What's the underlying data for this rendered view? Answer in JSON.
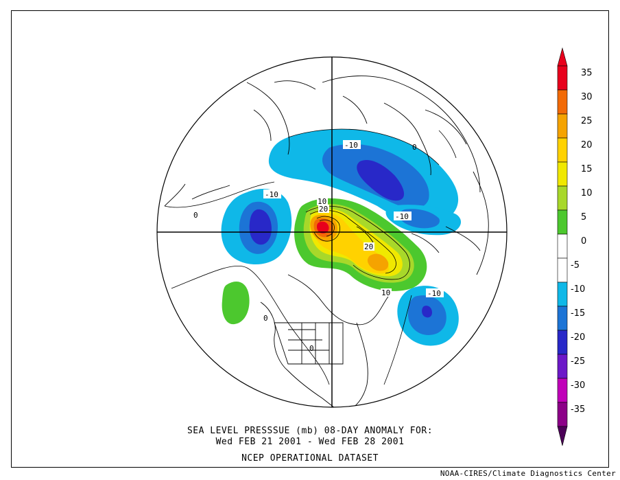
{
  "caption": {
    "line1": "SEA LEVEL PRESSSUE (mb)   08-DAY ANOMALY FOR:",
    "line2": "Wed FEB 21 2001 - Wed FEB 28 2001",
    "line3": "NCEP OPERATIONAL DATASET"
  },
  "credit": "NOAA-CIRES/Climate Diagnostics Center",
  "colorbar": {
    "levels": [
      {
        "label": "35",
        "color": "#e8001c"
      },
      {
        "label": "30",
        "color": "#f26a06"
      },
      {
        "label": "25",
        "color": "#f5a300"
      },
      {
        "label": "20",
        "color": "#ffd200"
      },
      {
        "label": "15",
        "color": "#f0e800"
      },
      {
        "label": "10",
        "color": "#a8d82a"
      },
      {
        "label": "5",
        "color": "#4cc82e"
      },
      {
        "label": "0",
        "color": "#ffffff"
      },
      {
        "label": "-5",
        "color": "#ffffff"
      },
      {
        "label": "-10",
        "color": "#0fb8e8"
      },
      {
        "label": "-15",
        "color": "#1c74d6"
      },
      {
        "label": "-20",
        "color": "#2828c8"
      },
      {
        "label": "-25",
        "color": "#6c18c8"
      },
      {
        "label": "-30",
        "color": "#c000b8"
      },
      {
        "label": "-35",
        "color": "#8c0088"
      }
    ],
    "bottom_color": "#4c0058",
    "top_color": "#e8001c"
  },
  "contour_labels": {
    "neg10_a": "-10",
    "neg10_b": "-10",
    "neg10_c": "-10",
    "neg10_d": "-10",
    "pos10_a": "10",
    "pos10_b": "10",
    "pos20_a": "20",
    "pos20_b": "20",
    "zero_a": "0",
    "zero_b": "0",
    "zero_c": "0",
    "zero_d": "0"
  }
}
